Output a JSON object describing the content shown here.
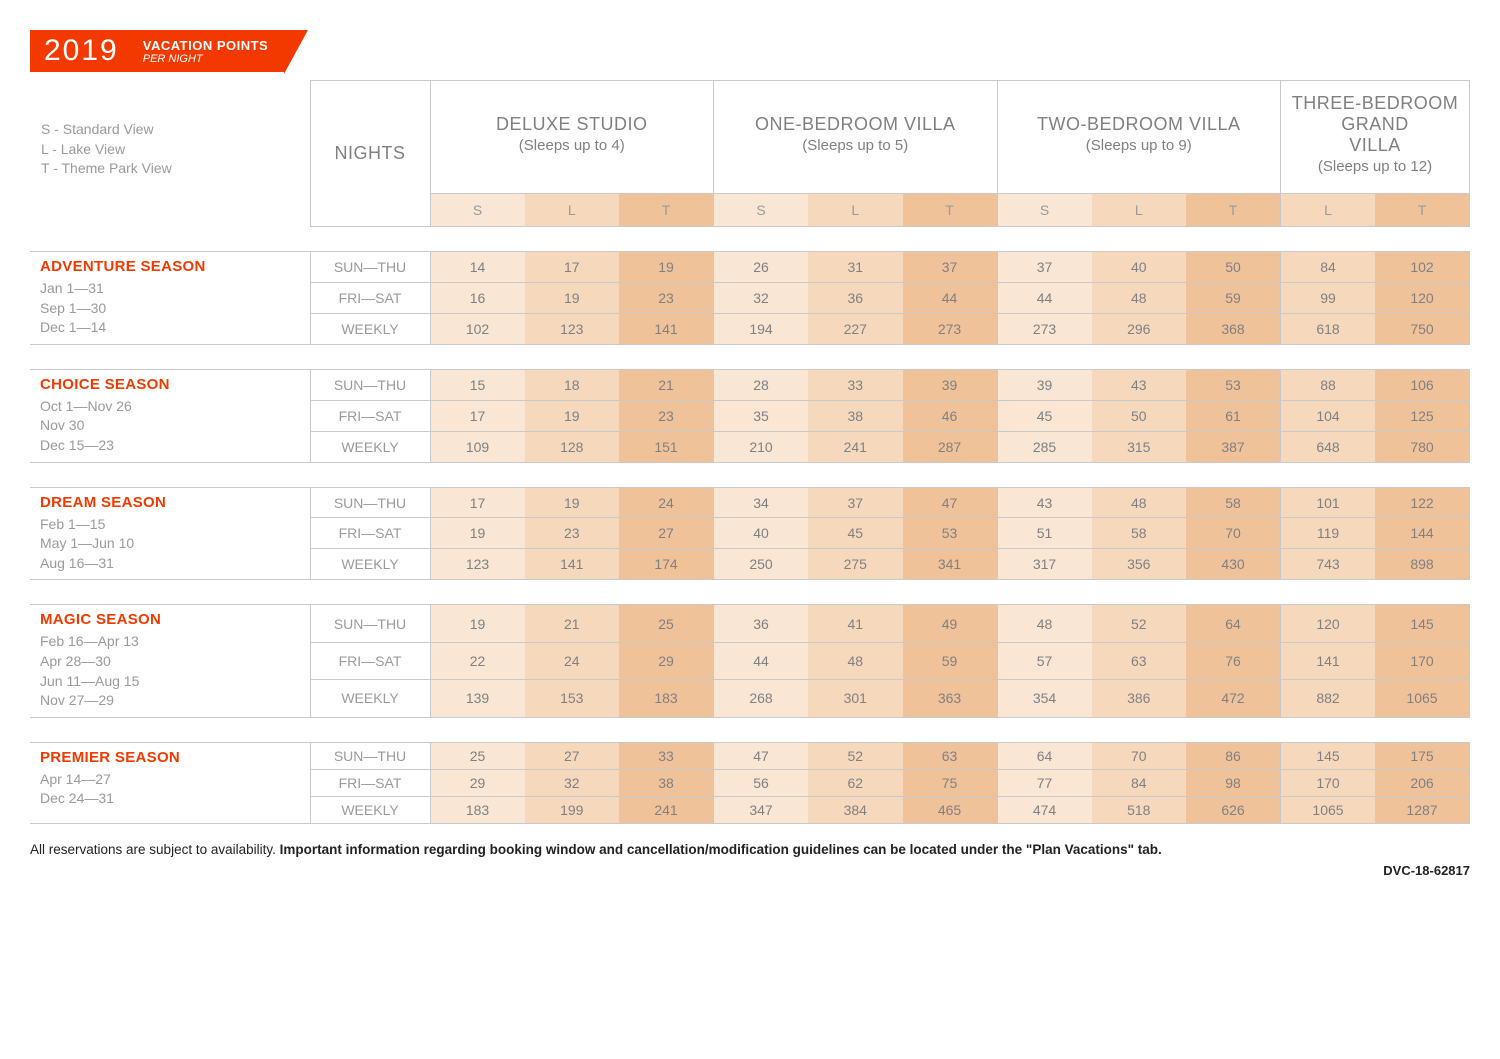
{
  "header": {
    "year": "2019",
    "title": "VACATION POINTS",
    "subtitle": "PER NIGHT"
  },
  "legend": [
    "S - Standard View",
    "L - Lake View",
    "T - Theme Park View"
  ],
  "nights_label": "NIGHTS",
  "rooms": [
    {
      "name": "DELUXE STUDIO",
      "sub": "(Sleeps up to 4)",
      "views": [
        "S",
        "L",
        "T"
      ]
    },
    {
      "name": "ONE-BEDROOM VILLA",
      "sub": "(Sleeps up to 5)",
      "views": [
        "S",
        "L",
        "T"
      ]
    },
    {
      "name": "TWO-BEDROOM VILLA",
      "sub": "(Sleeps up to 9)",
      "views": [
        "S",
        "L",
        "T"
      ]
    },
    {
      "name": "THREE-BEDROOM GRAND VILLA",
      "sub": "(Sleeps up to 12)",
      "views": [
        "L",
        "T"
      ]
    }
  ],
  "night_rows": [
    "SUN—THU",
    "FRI—SAT",
    "WEEKLY"
  ],
  "seasons": [
    {
      "name": "ADVENTURE SEASON",
      "dates": [
        "Jan 1—31",
        "Sep 1—30",
        "Dec 1—14"
      ],
      "rows": [
        [
          14,
          17,
          19,
          26,
          31,
          37,
          37,
          40,
          50,
          84,
          102
        ],
        [
          16,
          19,
          23,
          32,
          36,
          44,
          44,
          48,
          59,
          99,
          120
        ],
        [
          102,
          123,
          141,
          194,
          227,
          273,
          273,
          296,
          368,
          618,
          750
        ]
      ]
    },
    {
      "name": "CHOICE SEASON",
      "dates": [
        "Oct 1—Nov 26",
        "Nov 30",
        "Dec 15—23"
      ],
      "rows": [
        [
          15,
          18,
          21,
          28,
          33,
          39,
          39,
          43,
          53,
          88,
          106
        ],
        [
          17,
          19,
          23,
          35,
          38,
          46,
          45,
          50,
          61,
          104,
          125
        ],
        [
          109,
          128,
          151,
          210,
          241,
          287,
          285,
          315,
          387,
          648,
          780
        ]
      ]
    },
    {
      "name": "DREAM SEASON",
      "dates": [
        "Feb 1—15",
        "May 1—Jun 10",
        "Aug 16—31"
      ],
      "rows": [
        [
          17,
          19,
          24,
          34,
          37,
          47,
          43,
          48,
          58,
          101,
          122
        ],
        [
          19,
          23,
          27,
          40,
          45,
          53,
          51,
          58,
          70,
          119,
          144
        ],
        [
          123,
          141,
          174,
          250,
          275,
          341,
          317,
          356,
          430,
          743,
          898
        ]
      ]
    },
    {
      "name": "MAGIC SEASON",
      "dates": [
        "Feb 16—Apr 13",
        "Apr 28—30",
        "Jun 11—Aug 15",
        "Nov 27—29"
      ],
      "rows": [
        [
          19,
          21,
          25,
          36,
          41,
          49,
          48,
          52,
          64,
          120,
          145
        ],
        [
          22,
          24,
          29,
          44,
          48,
          59,
          57,
          63,
          76,
          141,
          170
        ],
        [
          139,
          153,
          183,
          268,
          301,
          363,
          354,
          386,
          472,
          882,
          1065
        ]
      ]
    },
    {
      "name": "PREMIER SEASON",
      "dates": [
        "Apr 14—27",
        "Dec 24—31"
      ],
      "rows": [
        [
          25,
          27,
          33,
          47,
          52,
          63,
          64,
          70,
          86,
          145,
          175
        ],
        [
          29,
          32,
          38,
          56,
          62,
          75,
          77,
          84,
          98,
          170,
          206
        ],
        [
          183,
          199,
          241,
          347,
          384,
          465,
          474,
          518,
          626,
          1065,
          1287
        ]
      ]
    }
  ],
  "footer": {
    "plain": "All reservations are subject to availability. ",
    "bold": "Important information regarding booking window and cancellation/modification guidelines can be located under the \"Plan Vacations\" tab.",
    "docid": "DVC-18-62817"
  },
  "shades": [
    "shade0",
    "shade1",
    "shade2"
  ]
}
